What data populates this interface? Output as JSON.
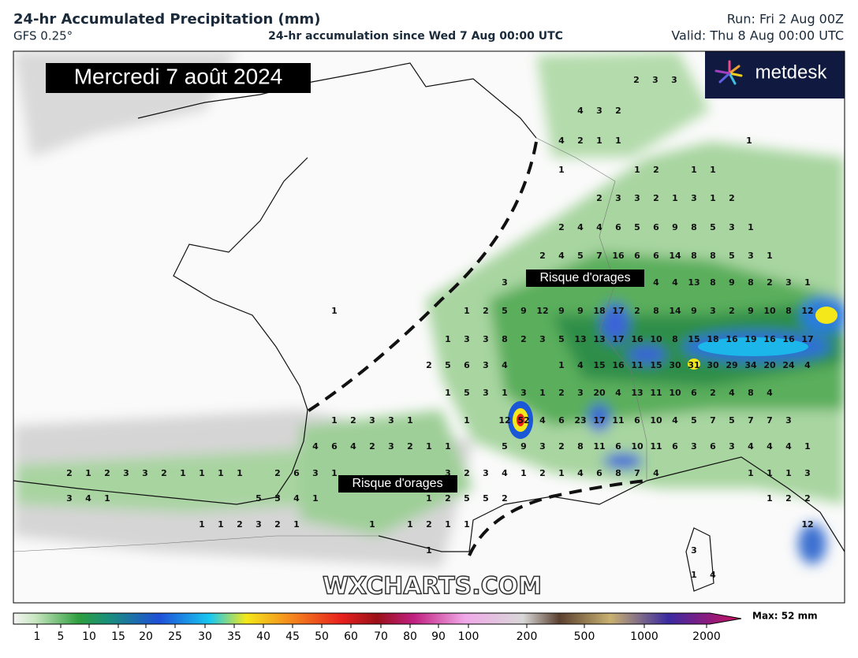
{
  "header": {
    "title": "24-hr Accumulated Precipitation (mm)",
    "model": "GFS 0.25°",
    "subtitle": "24-hr accumulation since Wed 7 Aug 00:00 UTC",
    "run": "Run: Fri 2 Aug 00Z",
    "valid": "Valid: Thu 8 Aug 00:00 UTC"
  },
  "logo": "metdesk",
  "watermark": "WXCHARTS.COM",
  "map": {
    "date_label": "Mercredi 7 août 2024",
    "annotations": [
      "Risque d'orages",
      "Risque d'orages"
    ],
    "values": [
      [
        2,
        3,
        3
      ],
      [
        4,
        3,
        2
      ],
      [
        4,
        2,
        1,
        1,
        1
      ],
      [
        1,
        1,
        2,
        1,
        1
      ],
      [
        2,
        3,
        3,
        2,
        1,
        3,
        1,
        2
      ],
      [
        2,
        4,
        4,
        6,
        5,
        6,
        9,
        8,
        5,
        3,
        1
      ],
      [
        2,
        4,
        5,
        7,
        16,
        6,
        6,
        14,
        8,
        8,
        5,
        3,
        1
      ],
      [
        3,
        4,
        4,
        13,
        8,
        9,
        8,
        2,
        3,
        1
      ],
      [
        1,
        1,
        2,
        5,
        9,
        12,
        9,
        9,
        18,
        17,
        2,
        8,
        14,
        9,
        3,
        2,
        9,
        10,
        8,
        12
      ],
      [
        1,
        3,
        3,
        8,
        2,
        3,
        5,
        13,
        13,
        17,
        16,
        10,
        8,
        15,
        18,
        16,
        19,
        16,
        16,
        17
      ],
      [
        2,
        5,
        6,
        3,
        4,
        1,
        4,
        15,
        16,
        11,
        15,
        30,
        31,
        30,
        29,
        34,
        20,
        24,
        4
      ],
      [
        1,
        5,
        3,
        1,
        3,
        1,
        2,
        3,
        20,
        4,
        13,
        11,
        10,
        6,
        2,
        4,
        8,
        4
      ],
      [
        1,
        2,
        3,
        3,
        1,
        1,
        12,
        52,
        4,
        6,
        23,
        17,
        11,
        6,
        10,
        4,
        5,
        7,
        5,
        7,
        7,
        3
      ],
      [
        4,
        6,
        4,
        2,
        3,
        2,
        1,
        1,
        5,
        9,
        3,
        2,
        8,
        11,
        6,
        10,
        11,
        6,
        3,
        6,
        3,
        4,
        4,
        4,
        1
      ],
      [
        2,
        1,
        2,
        3,
        3,
        2,
        1,
        1,
        1,
        1,
        2,
        6,
        3,
        1,
        3,
        2,
        3,
        4,
        1,
        2,
        1,
        4,
        6,
        8,
        7,
        4,
        1,
        1,
        1,
        3
      ],
      [
        3,
        4,
        1,
        5,
        5,
        4,
        1,
        1,
        2,
        5,
        5,
        2,
        1,
        2,
        2
      ],
      [
        1,
        1,
        2,
        3,
        2,
        1,
        1,
        1,
        2,
        1,
        1,
        12
      ],
      [
        1,
        3
      ],
      [
        1,
        4
      ]
    ]
  },
  "colorbar": {
    "ticks": [
      1,
      5,
      10,
      15,
      20,
      25,
      30,
      35,
      40,
      45,
      50,
      60,
      70,
      80,
      90,
      100,
      200,
      500,
      1000,
      2000
    ],
    "max_label": "Max: 52 mm"
  }
}
